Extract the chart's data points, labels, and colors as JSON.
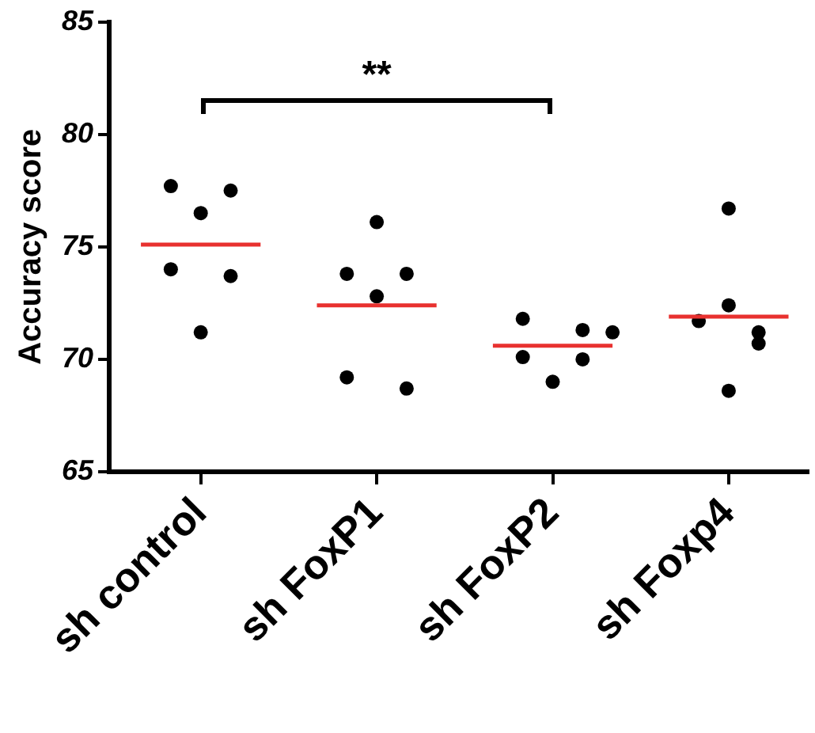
{
  "chart_data": {
    "type": "scatter",
    "ylabel": "Accuracy score",
    "categories": [
      "sh control",
      "sh FoxP1",
      "sh FoxP2",
      "sh Foxp4"
    ],
    "series": [
      {
        "color": "#000000",
        "marker": "circle",
        "x": [
          "sh control",
          "sh control",
          "sh control",
          "sh control",
          "sh control",
          "sh control",
          "sh FoxP1",
          "sh FoxP1",
          "sh FoxP1",
          "sh FoxP1",
          "sh FoxP1",
          "sh FoxP1",
          "sh FoxP2",
          "sh FoxP2",
          "sh FoxP2",
          "sh FoxP2",
          "sh FoxP2",
          "sh FoxP2",
          "sh Foxp4",
          "sh Foxp4",
          "sh Foxp4",
          "sh Foxp4",
          "sh Foxp4",
          "sh Foxp4"
        ],
        "values": [
          77.7,
          77.5,
          76.5,
          74.0,
          73.7,
          71.2,
          76.1,
          73.8,
          73.8,
          72.8,
          69.2,
          68.7,
          71.8,
          71.3,
          71.2,
          70.1,
          70.0,
          69.0,
          76.7,
          72.4,
          71.7,
          71.2,
          70.7,
          68.6
        ]
      },
      {
        "type": "box",
        "color": "#e8312f",
        "boxes": [
          {
            "low": 75.1,
            "q1": 75.1,
            "median": 75.1,
            "q3": 75.1,
            "high": 75.1
          },
          {
            "low": 72.4,
            "q1": 72.4,
            "median": 72.4,
            "q3": 72.4,
            "high": 72.4
          },
          {
            "low": 70.6,
            "q1": 70.6,
            "median": 70.6,
            "q3": 70.6,
            "high": 70.6
          },
          {
            "low": 71.9,
            "q1": 71.9,
            "median": 71.9,
            "q3": 71.9,
            "high": 71.9
          }
        ]
      }
    ],
    "ylim": [
      65,
      85
    ],
    "yticks": [
      65,
      70,
      75,
      80,
      85
    ],
    "grid": false,
    "legend": false,
    "annotations": [
      "**"
    ]
  }
}
